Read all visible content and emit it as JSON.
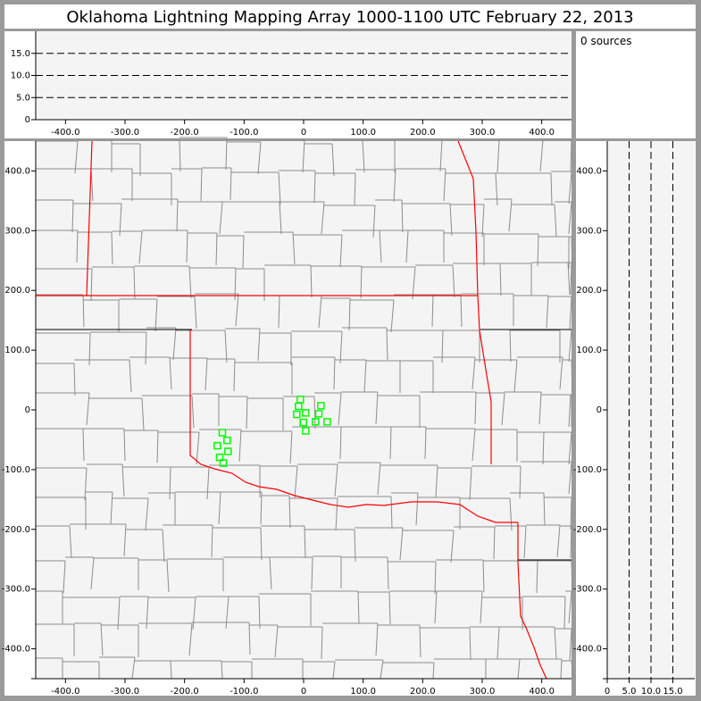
{
  "title": "Oklahoma Lightning Mapping Array   1000-1100 UTC  February 22, 2013",
  "source_count_label": "0 sources",
  "colors": {
    "background": "#9a9a9a",
    "plot_bg": "#f4f4f4",
    "state_border": "#ff0000",
    "county_border": "#8c8c8c",
    "sources": "#00ff00",
    "grid_dash": "#000000"
  },
  "chart_data": [
    {
      "type": "scatter",
      "name_panel": "altitude-vs-east-west",
      "xlim": [
        -450,
        450
      ],
      "ylim": [
        0,
        20
      ],
      "xticks": [
        "-400.0",
        "-300.0",
        "-200.0",
        "-100.0",
        "0",
        "100.0",
        "200.0",
        "300.0",
        "400.0"
      ],
      "xtick_values": [
        -400,
        -300,
        -200,
        -100,
        0,
        100,
        200,
        300,
        400
      ],
      "yticks": [
        "0",
        "5.0",
        "10.0",
        "15.0"
      ],
      "ytick_values": [
        0,
        5,
        10,
        15
      ],
      "dashed_gridlines": [
        5,
        10,
        15
      ],
      "points": []
    },
    {
      "type": "scatter",
      "name_panel": "plan-view-map",
      "xlim": [
        -450,
        450
      ],
      "ylim": [
        -450,
        450
      ],
      "xticks": [
        "-400.0",
        "-300.0",
        "-200.0",
        "-100.0",
        "0",
        "100.0",
        "200.0",
        "300.0",
        "400.0"
      ],
      "xtick_values": [
        -400,
        -300,
        -200,
        -100,
        0,
        100,
        200,
        300,
        400
      ],
      "yticks": [
        "400.0",
        "300.0",
        "200.0",
        "100.0",
        "0",
        "-100.0",
        "-200.0",
        "-300.0",
        "-400.0"
      ],
      "ytick_values": [
        400,
        300,
        200,
        100,
        0,
        -100,
        -200,
        -300,
        -400
      ],
      "marker": "hollow-square",
      "points": [
        [
          -5.5,
          17.5
        ],
        [
          -8.5,
          6
        ],
        [
          29,
          7
        ],
        [
          3.5,
          -5
        ],
        [
          -11.5,
          -7.5
        ],
        [
          25.5,
          -6.5
        ],
        [
          -0.5,
          -21
        ],
        [
          20,
          -20
        ],
        [
          39.5,
          -20
        ],
        [
          3.5,
          -35
        ],
        [
          -136.5,
          -38
        ],
        [
          -128.5,
          -51
        ],
        [
          -145,
          -60
        ],
        [
          -127,
          -69.5
        ],
        [
          -141,
          -79.5
        ],
        [
          -135,
          -89
        ]
      ]
    },
    {
      "type": "scatter",
      "name_panel": "north-south-vs-altitude",
      "xlim": [
        0,
        20
      ],
      "ylim": [
        -450,
        450
      ],
      "xticks": [
        "0",
        "5.0",
        "10.0",
        "15.0"
      ],
      "xtick_values": [
        0,
        5,
        10,
        15
      ],
      "yticks": [
        "400.0",
        "300.0",
        "200.0",
        "100.0",
        "0",
        "-100.0",
        "-200.0",
        "-300.0",
        "-400.0"
      ],
      "ytick_values": [
        400,
        300,
        200,
        100,
        0,
        -100,
        -200,
        -300,
        -400
      ],
      "dashed_gridlines": [
        5,
        10,
        15
      ],
      "points": []
    }
  ]
}
